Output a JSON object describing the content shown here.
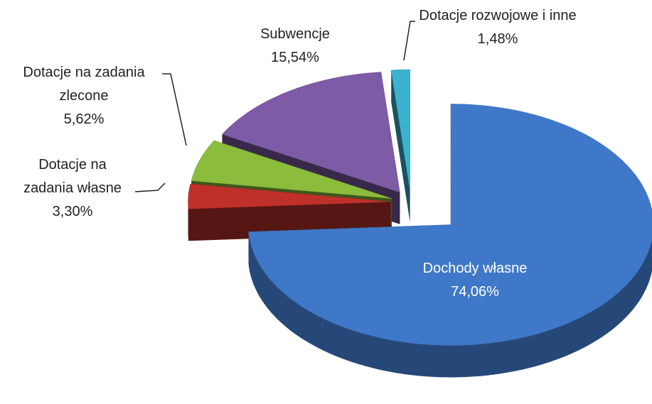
{
  "chart_data": {
    "type": "pie3d",
    "categories": [
      "Dochody własne",
      "Dotacje na zadania własne",
      "Dotacje na zadania zlecone",
      "Subwencje",
      "Dotacje rozwojowe i inne"
    ],
    "values": [
      74.06,
      3.3,
      5.62,
      15.54,
      1.48
    ],
    "value_labels": [
      "74,06%",
      "3,30%",
      "5,62%",
      "15,54%",
      "1,48%"
    ],
    "colors": [
      "#3f78c8",
      "#c0302a",
      "#8cbc3c",
      "#7d5ba6",
      "#3bb3d0"
    ]
  }
}
